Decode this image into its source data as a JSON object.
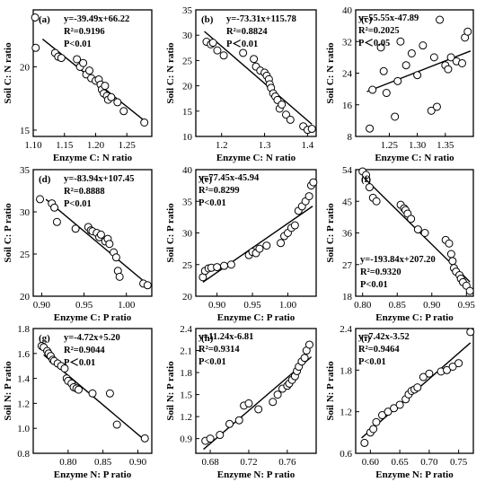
{
  "chart_data": [
    {
      "type": "scatter",
      "label": "(a)",
      "xlabel": "Enzyme C: N ratio",
      "ylabel": "Soil C: N ratio",
      "xlim": [
        1.1,
        1.29
      ],
      "ylim": [
        14.5,
        24.5
      ],
      "xticks": [
        1.1,
        1.15,
        1.2,
        1.25
      ],
      "xtick_labels": [
        "1.10",
        "1.15",
        "1.20",
        "1.25"
      ],
      "yticks": [
        15,
        20
      ],
      "ytick_labels": [
        "15",
        "20"
      ],
      "annotations": [
        "y=-39.49x+66.22",
        "R²=0.9196",
        "P<0.01"
      ],
      "annotation_pos": "top-right",
      "fit": {
        "slope": -39.49,
        "intercept": 66.22,
        "x_range": [
          1.115,
          1.28
        ]
      },
      "points": [
        [
          1.103,
          23.9
        ],
        [
          1.104,
          21.5
        ],
        [
          1.135,
          21.1
        ],
        [
          1.14,
          20.8
        ],
        [
          1.145,
          20.7
        ],
        [
          1.17,
          20.6
        ],
        [
          1.175,
          20.0
        ],
        [
          1.18,
          20.3
        ],
        [
          1.185,
          19.4
        ],
        [
          1.19,
          19.7
        ],
        [
          1.193,
          19.1
        ],
        [
          1.2,
          18.9
        ],
        [
          1.205,
          19.0
        ],
        [
          1.208,
          18.6
        ],
        [
          1.21,
          18.2
        ],
        [
          1.213,
          17.9
        ],
        [
          1.215,
          18.5
        ],
        [
          1.218,
          17.7
        ],
        [
          1.22,
          17.4
        ],
        [
          1.225,
          17.6
        ],
        [
          1.235,
          17.2
        ],
        [
          1.245,
          16.5
        ],
        [
          1.278,
          15.6
        ]
      ]
    },
    {
      "type": "scatter",
      "label": "(b)",
      "xlabel": "Enzyme C: N ratio",
      "ylabel": "Soil C: N ratio",
      "xlim": [
        1.14,
        1.42
      ],
      "ylim": [
        10,
        35
      ],
      "xticks": [
        1.2,
        1.3,
        1.4
      ],
      "xtick_labels": [
        "1.2",
        "1.3",
        "1.4"
      ],
      "yticks": [
        10,
        15,
        20,
        25,
        30,
        35
      ],
      "ytick_labels": [
        "10",
        "15",
        "20",
        "25",
        "30",
        "35"
      ],
      "annotations": [
        "y=-73.31x+115.78",
        "R²=0.8824",
        "P＜0.01"
      ],
      "annotation_pos": "top-right",
      "fit": {
        "slope": -73.31,
        "intercept": 115.78,
        "x_range": [
          1.16,
          1.41
        ]
      },
      "points": [
        [
          1.165,
          28.7
        ],
        [
          1.175,
          28.2
        ],
        [
          1.18,
          28.5
        ],
        [
          1.19,
          27.0
        ],
        [
          1.205,
          26.0
        ],
        [
          1.25,
          26.5
        ],
        [
          1.275,
          25.3
        ],
        [
          1.28,
          23.8
        ],
        [
          1.29,
          23.0
        ],
        [
          1.3,
          22.6
        ],
        [
          1.305,
          22.0
        ],
        [
          1.31,
          21.3
        ],
        [
          1.312,
          20.3
        ],
        [
          1.315,
          19.6
        ],
        [
          1.32,
          18.5
        ],
        [
          1.325,
          17.9
        ],
        [
          1.33,
          17.2
        ],
        [
          1.335,
          15.5
        ],
        [
          1.34,
          16.3
        ],
        [
          1.35,
          14.3
        ],
        [
          1.36,
          13.3
        ],
        [
          1.39,
          12.0
        ],
        [
          1.4,
          11.3
        ],
        [
          1.41,
          11.5
        ]
      ]
    },
    {
      "type": "scatter",
      "label": "(c)",
      "xlabel": "Enzyme C: N ratio",
      "ylabel": "Soil C: N ratio",
      "xlim": [
        1.19,
        1.4
      ],
      "ylim": [
        8,
        40
      ],
      "xticks": [
        1.25,
        1.3,
        1.35
      ],
      "xtick_labels": [
        "1.25",
        "1.30",
        "1.35"
      ],
      "yticks": [
        8,
        16,
        24,
        32,
        40
      ],
      "ytick_labels": [
        "8",
        "16",
        "24",
        "32",
        "40"
      ],
      "annotations": [
        "y=55.55x-47.89",
        "R²=0.2025",
        "P＜0.05"
      ],
      "annotation_pos": "top-left",
      "fit": {
        "slope": 55.55,
        "intercept": -47.89,
        "x_range": [
          1.21,
          1.395
        ]
      },
      "points": [
        [
          1.215,
          10.0
        ],
        [
          1.22,
          19.8
        ],
        [
          1.235,
          30.5
        ],
        [
          1.24,
          24.5
        ],
        [
          1.245,
          19.0
        ],
        [
          1.26,
          13.0
        ],
        [
          1.265,
          22.0
        ],
        [
          1.27,
          32.0
        ],
        [
          1.28,
          26.0
        ],
        [
          1.29,
          29.0
        ],
        [
          1.3,
          23.5
        ],
        [
          1.31,
          31.0
        ],
        [
          1.325,
          14.5
        ],
        [
          1.33,
          28.0
        ],
        [
          1.335,
          15.5
        ],
        [
          1.34,
          37.5
        ],
        [
          1.35,
          26.0
        ],
        [
          1.355,
          25.0
        ],
        [
          1.36,
          28.0
        ],
        [
          1.37,
          27.0
        ],
        [
          1.38,
          26.5
        ],
        [
          1.385,
          33.0
        ],
        [
          1.39,
          34.5
        ]
      ]
    },
    {
      "type": "scatter",
      "label": "(d)",
      "xlabel": "Enzyme C: P ratio",
      "ylabel": "Soil C: P ratio",
      "xlim": [
        0.89,
        1.03
      ],
      "ylim": [
        20,
        35
      ],
      "xticks": [
        0.9,
        0.95,
        1.0
      ],
      "xtick_labels": [
        "0.90",
        "0.95",
        "1.00"
      ],
      "yticks": [
        20,
        25,
        30,
        35
      ],
      "ytick_labels": [
        "20",
        "25",
        "30",
        "35"
      ],
      "annotations": [
        "y=-83.94x+107.45",
        "R²=0.8888",
        "P<0.01"
      ],
      "annotation_pos": "top-right",
      "fit": {
        "slope": -83.94,
        "intercept": 107.45,
        "x_range": [
          0.905,
          1.025
        ]
      },
      "points": [
        [
          0.898,
          31.5
        ],
        [
          0.912,
          31.0
        ],
        [
          0.915,
          30.5
        ],
        [
          0.918,
          28.8
        ],
        [
          0.94,
          28.0
        ],
        [
          0.955,
          28.2
        ],
        [
          0.958,
          27.8
        ],
        [
          0.96,
          27.7
        ],
        [
          0.965,
          27.5
        ],
        [
          0.968,
          27.0
        ],
        [
          0.97,
          27.3
        ],
        [
          0.975,
          26.5
        ],
        [
          0.978,
          26.8
        ],
        [
          0.98,
          26.2
        ],
        [
          0.985,
          25.2
        ],
        [
          0.988,
          24.6
        ],
        [
          0.99,
          23.0
        ],
        [
          0.992,
          22.3
        ],
        [
          1.02,
          21.5
        ],
        [
          1.025,
          21.3
        ]
      ]
    },
    {
      "type": "scatter",
      "label": "(e)",
      "xlabel": "Enzyme C: P ratio",
      "ylabel": "Soil C: P ratio",
      "xlim": [
        0.87,
        1.04
      ],
      "ylim": [
        20,
        40
      ],
      "xticks": [
        0.9,
        0.95,
        1.0
      ],
      "xtick_labels": [
        "0.90",
        "0.95",
        "1.00"
      ],
      "yticks": [
        20,
        25,
        30,
        35,
        40
      ],
      "ytick_labels": [
        "20",
        "25",
        "30",
        "35",
        "40"
      ],
      "annotations": [
        "y=77.45x-45.94",
        "R²=0.8299",
        "P<0.01"
      ],
      "annotation_pos": "top-left",
      "fit": {
        "slope": 77.45,
        "intercept": -45.94,
        "x_range": [
          0.88,
          1.035
        ]
      },
      "points": [
        [
          0.88,
          23.0
        ],
        [
          0.883,
          24.0
        ],
        [
          0.888,
          24.4
        ],
        [
          0.892,
          24.5
        ],
        [
          0.9,
          24.6
        ],
        [
          0.91,
          24.8
        ],
        [
          0.92,
          25.0
        ],
        [
          0.945,
          26.5
        ],
        [
          0.95,
          27.0
        ],
        [
          0.955,
          26.8
        ],
        [
          0.96,
          27.5
        ],
        [
          0.97,
          28.0
        ],
        [
          0.99,
          28.4
        ],
        [
          0.995,
          29.5
        ],
        [
          1.0,
          30.0
        ],
        [
          1.005,
          30.8
        ],
        [
          1.01,
          31.2
        ],
        [
          1.015,
          33.5
        ],
        [
          1.02,
          34.2
        ],
        [
          1.025,
          35.0
        ],
        [
          1.03,
          35.8
        ],
        [
          1.033,
          37.5
        ],
        [
          1.036,
          38.0
        ]
      ]
    },
    {
      "type": "scatter",
      "label": "(f)",
      "xlabel": "Enzyme C: P ratio",
      "ylabel": "Soil C: P ratio",
      "xlim": [
        0.79,
        0.96
      ],
      "ylim": [
        18,
        54
      ],
      "xticks": [
        0.8,
        0.85,
        0.9,
        0.95
      ],
      "xtick_labels": [
        "0.80",
        "0.85",
        "0.90",
        "0.95"
      ],
      "yticks": [
        18,
        27,
        36,
        45,
        54
      ],
      "ytick_labels": [
        "18",
        "27",
        "36",
        "45",
        "54"
      ],
      "annotations": [
        "y=-193.84x+207.20",
        "R²=0.9320",
        "P<0.01"
      ],
      "annotation_pos": "bottom-left",
      "fit": {
        "slope": -193.84,
        "intercept": 207.2,
        "x_range": [
          0.8,
          0.955
        ]
      },
      "points": [
        [
          0.8,
          53.5
        ],
        [
          0.805,
          52.5
        ],
        [
          0.81,
          49.0
        ],
        [
          0.815,
          46.0
        ],
        [
          0.82,
          45.0
        ],
        [
          0.855,
          44.0
        ],
        [
          0.86,
          43.0
        ],
        [
          0.862,
          42.5
        ],
        [
          0.865,
          41.5
        ],
        [
          0.87,
          40.0
        ],
        [
          0.88,
          37.0
        ],
        [
          0.89,
          36.0
        ],
        [
          0.92,
          34.0
        ],
        [
          0.925,
          33.0
        ],
        [
          0.928,
          30.0
        ],
        [
          0.93,
          28.0
        ],
        [
          0.932,
          26.0
        ],
        [
          0.935,
          25.0
        ],
        [
          0.94,
          24.0
        ],
        [
          0.942,
          23.0
        ],
        [
          0.945,
          22.0
        ],
        [
          0.95,
          21.0
        ],
        [
          0.955,
          19.5
        ]
      ]
    },
    {
      "type": "scatter",
      "label": "(g)",
      "xlabel": "Enzyme N: P ratio",
      "ylabel": "Soil N: P ratio",
      "xlim": [
        0.75,
        0.92
      ],
      "ylim": [
        0.8,
        1.8
      ],
      "xticks": [
        0.8,
        0.85,
        0.9
      ],
      "xtick_labels": [
        "0.80",
        "0.85",
        "0.90"
      ],
      "yticks": [
        0.8,
        1.0,
        1.2,
        1.4,
        1.6,
        1.8
      ],
      "ytick_labels": [
        "0.8",
        "1.0",
        "1.2",
        "1.4",
        "1.6",
        "1.8"
      ],
      "annotations": [
        "y=-4.72x+5.20",
        "R²=0.9044",
        "P＜0.01"
      ],
      "annotation_pos": "top-right",
      "fit": {
        "slope": -4.72,
        "intercept": 5.2,
        "x_range": [
          0.765,
          0.91
        ]
      },
      "points": [
        [
          0.762,
          1.66
        ],
        [
          0.765,
          1.65
        ],
        [
          0.77,
          1.62
        ],
        [
          0.772,
          1.6
        ],
        [
          0.775,
          1.58
        ],
        [
          0.778,
          1.55
        ],
        [
          0.78,
          1.54
        ],
        [
          0.785,
          1.52
        ],
        [
          0.79,
          1.5
        ],
        [
          0.795,
          1.48
        ],
        [
          0.798,
          1.4
        ],
        [
          0.8,
          1.38
        ],
        [
          0.805,
          1.36
        ],
        [
          0.808,
          1.33
        ],
        [
          0.812,
          1.32
        ],
        [
          0.815,
          1.31
        ],
        [
          0.835,
          1.28
        ],
        [
          0.86,
          1.28
        ],
        [
          0.87,
          1.03
        ],
        [
          0.91,
          0.92
        ]
      ]
    },
    {
      "type": "scatter",
      "label": "(h)",
      "xlabel": "Enzyme N: P ratio",
      "ylabel": "Soil N: P ratio",
      "xlim": [
        0.665,
        0.79
      ],
      "ylim": [
        0.7,
        2.4
      ],
      "xticks": [
        0.68,
        0.72,
        0.76
      ],
      "xtick_labels": [
        "0.68",
        "0.72",
        "0.76"
      ],
      "yticks": [
        0.9,
        1.2,
        1.5,
        1.8,
        2.1,
        2.4
      ],
      "ytick_labels": [
        "0.9",
        "1.2",
        "1.5",
        "1.8",
        "2.1",
        "2.4"
      ],
      "annotations": [
        "y=11.24x-6.81",
        "R²=0.9314",
        "P<0.01"
      ],
      "annotation_pos": "top-left",
      "fit": {
        "slope": 11.24,
        "intercept": -6.81,
        "x_range": [
          0.673,
          0.785
        ]
      },
      "points": [
        [
          0.675,
          0.87
        ],
        [
          0.68,
          0.9
        ],
        [
          0.69,
          0.95
        ],
        [
          0.7,
          1.1
        ],
        [
          0.71,
          1.15
        ],
        [
          0.715,
          1.35
        ],
        [
          0.72,
          1.38
        ],
        [
          0.73,
          1.3
        ],
        [
          0.745,
          1.4
        ],
        [
          0.75,
          1.5
        ],
        [
          0.755,
          1.58
        ],
        [
          0.76,
          1.62
        ],
        [
          0.762,
          1.65
        ],
        [
          0.765,
          1.7
        ],
        [
          0.768,
          1.75
        ],
        [
          0.77,
          1.82
        ],
        [
          0.772,
          1.88
        ],
        [
          0.775,
          1.95
        ],
        [
          0.778,
          2.0
        ],
        [
          0.78,
          2.1
        ],
        [
          0.783,
          2.18
        ]
      ]
    },
    {
      "type": "scatter",
      "label": "(i)",
      "xlabel": "Enzyme N: P ratio",
      "ylabel": "Soil N: P ratio",
      "xlim": [
        0.575,
        0.775
      ],
      "ylim": [
        0.6,
        2.4
      ],
      "xticks": [
        0.6,
        0.65,
        0.7,
        0.75
      ],
      "xtick_labels": [
        "0.60",
        "0.65",
        "0.70",
        "0.75"
      ],
      "yticks": [
        0.6,
        1.2,
        1.8,
        2.4
      ],
      "ytick_labels": [
        "0.6",
        "1.2",
        "1.8",
        "2.4"
      ],
      "annotations": [
        "y=7.42x-3.52",
        "R²=0.9464",
        "P<0.01"
      ],
      "annotation_pos": "top-left",
      "fit": {
        "slope": 7.42,
        "intercept": -3.52,
        "x_range": [
          0.585,
          0.77
        ]
      },
      "points": [
        [
          0.59,
          0.75
        ],
        [
          0.6,
          0.9
        ],
        [
          0.605,
          0.95
        ],
        [
          0.61,
          1.05
        ],
        [
          0.62,
          1.15
        ],
        [
          0.63,
          1.2
        ],
        [
          0.64,
          1.25
        ],
        [
          0.65,
          1.3
        ],
        [
          0.66,
          1.38
        ],
        [
          0.665,
          1.45
        ],
        [
          0.67,
          1.5
        ],
        [
          0.675,
          1.52
        ],
        [
          0.68,
          1.55
        ],
        [
          0.69,
          1.7
        ],
        [
          0.7,
          1.75
        ],
        [
          0.72,
          1.78
        ],
        [
          0.73,
          1.8
        ],
        [
          0.74,
          1.85
        ],
        [
          0.75,
          1.9
        ],
        [
          0.77,
          2.35
        ]
      ]
    }
  ]
}
